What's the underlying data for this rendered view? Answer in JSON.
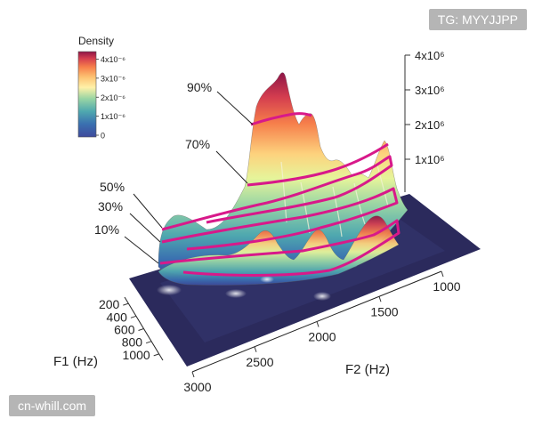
{
  "watermark_top": "TG: MYYJJPP",
  "watermark_bottom": "cn-whill.com",
  "chart_data": {
    "type": "surface3d",
    "colorbar": {
      "title": "Density",
      "ticks": [
        "4x10⁻⁶",
        "3x10⁻⁶",
        "2x10⁻⁶",
        "1x10⁻⁶",
        "0"
      ],
      "values": [
        4e-06,
        3e-06,
        2e-06,
        1e-06,
        0
      ],
      "colors": [
        "#8e1547",
        "#d43d4f",
        "#f67f4b",
        "#fdc373",
        "#fff1a8",
        "#e6f49a",
        "#99d5a4",
        "#4fa8af",
        "#3a6fb0",
        "#3f4a9c"
      ]
    },
    "z_axis": {
      "ticks": [
        "4x10⁶",
        "3x10⁶",
        "2x10⁶",
        "1x10⁶"
      ],
      "values": [
        4000000,
        3000000,
        2000000,
        1000000
      ]
    },
    "f1_axis": {
      "label": "F1 (Hz)",
      "ticks": [
        "200",
        "400",
        "600",
        "800",
        "1000"
      ]
    },
    "f2_axis": {
      "label": "F2 (Hz)",
      "ticks": [
        "1000",
        "1500",
        "2000",
        "2500",
        "3000"
      ]
    },
    "contour_levels": [
      "90%",
      "70%",
      "50%",
      "30%",
      "10%"
    ]
  }
}
